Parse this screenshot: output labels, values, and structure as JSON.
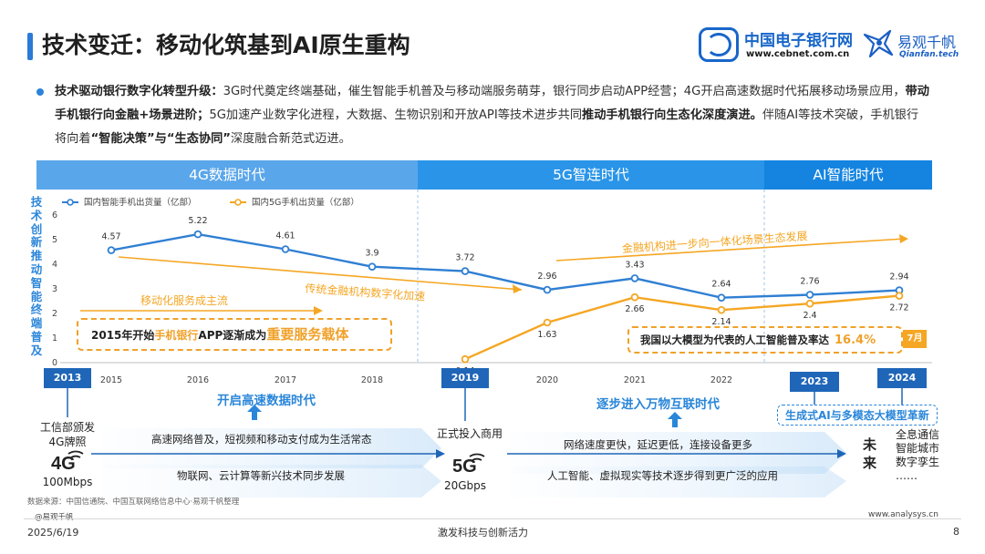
{
  "header": {
    "title": "技术变迁：移动化筑基到AI原生重构",
    "logo1_name": "中国电子银行网",
    "logo1_url": "www.cebnet.com.cn",
    "logo2_name": "易观千帆",
    "logo2_url": "Qianfan.tech"
  },
  "intro": {
    "p1": "技术驱动银行数字化转型升级：",
    "p2": "3G时代奠定终端基础，催生智能手机普及与移动端服务萌芽，银行同步启动APP经营；4G开启高速数据时代拓展移动场景应用，",
    "p3": "带动手机银行向金融+场景进阶；",
    "p4": "5G加速产业数字化进程，大数据、生物识别和开放API等技术进步共同",
    "p5": "推动手机银行向生态化深度演进。",
    "p6": "伴随AI等技术突破，手机银行将向着",
    "p7": "“智能决策”与“生态协同”",
    "p8": "深度融合新范式迈进。"
  },
  "eras": {
    "e4g": "4G数据时代",
    "e5g": "5G智连时代",
    "eai": "AI智能时代"
  },
  "side_label": "技术创新推动智能终端普及",
  "chart_data": {
    "type": "line",
    "x": [
      "2015",
      "2016",
      "2017",
      "2018",
      "2019",
      "2020",
      "2021",
      "2022",
      "2023",
      "2024"
    ],
    "series": [
      {
        "name": "国内智能手机出货量（亿部）",
        "color": "#2f7fd3",
        "values": [
          4.57,
          5.22,
          4.61,
          3.9,
          3.72,
          2.96,
          3.43,
          2.64,
          2.76,
          2.94
        ]
      },
      {
        "name": "国内5G手机出货量（亿部）",
        "color": "#f5a623",
        "values": [
          null,
          null,
          null,
          null,
          0.14,
          1.63,
          2.66,
          2.14,
          2.4,
          2.72
        ]
      }
    ],
    "ylim": [
      0,
      6
    ],
    "yticks": [
      0,
      1,
      2,
      3,
      4,
      5,
      6
    ],
    "grid": false,
    "legend": "top-left",
    "annotations": [
      {
        "text": "传统金融机构数字化加速",
        "color": "#f5a623"
      },
      {
        "text": "金融机构进一步向一体化场景生态发展",
        "color": "#f5a623"
      },
      {
        "text": "移动化服务成主流",
        "color": "#f5a623"
      }
    ]
  },
  "colors": {
    "blue": "#2f7fd3",
    "orange": "#f5a623",
    "era_dark": "#1584e0"
  },
  "callouts": {
    "c1_a": "2015年开始",
    "c1_b": "手机银行",
    "c1_c": "APP逐渐成为",
    "c1_d": "重要服务载体",
    "c2_a": "我国以大模型为代表的人工智能普及率达",
    "c2_b": "16.4%",
    "c2_tag": "7月"
  },
  "timeline": {
    "y2013": "2013",
    "y2019": "2019",
    "y2023": "2023",
    "y2024": "2024",
    "m1": "开启高速数据时代",
    "m2": "逐步进入万物互联时代",
    "genai": "生成式AI与多模态大模型革新",
    "miit": "工信部颁发",
    "lic4g": "4G牌照",
    "speed4g": "100Mbps",
    "commercial5g": "正式投入商用",
    "speed5g": "20Gbps",
    "t1": "高速网络普及，短视频和移动支付成为生活常态",
    "t2": "物联网、云计算等新兴技术同步发展",
    "t3": "网络速度更快，延迟更低，连接设备更多",
    "t4": "人工智能、虚拟现实等技术逐步得到更广泛的应用",
    "future": "未来",
    "f1": "全息通信",
    "f2": "智能城市",
    "f3": "数字孪生",
    "f4": "……",
    "icon4g": "4G",
    "icon5g": "5G"
  },
  "footer": {
    "source": "数据来源：中国信通院、中国互联网络信息中心·易观千帆整理",
    "watermark": "@易观千帆",
    "date": "2025/6/19",
    "slogan": "激发科技与创新活力",
    "site": "www.analysys.cn",
    "page": "8"
  }
}
